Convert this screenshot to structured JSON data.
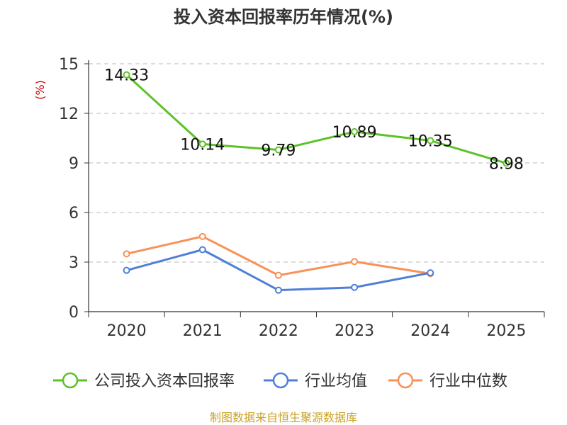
{
  "chart_data": {
    "type": "line",
    "title": "投入资本回报率历年情况(%)",
    "ylabel": "(%)",
    "xlabel": "",
    "categories": [
      "2020",
      "2021",
      "2022",
      "2023",
      "2024",
      "2025"
    ],
    "ylim": [
      0,
      15
    ],
    "yticks": [
      0,
      3,
      6,
      9,
      12,
      15
    ],
    "grid": true,
    "legend_position": "bottom",
    "series": [
      {
        "name": "公司投入资本回报率",
        "color": "#5cc228",
        "values": [
          14.33,
          10.14,
          9.79,
          10.89,
          10.35,
          8.98
        ],
        "labels": [
          "14.33",
          "10.14",
          "9.79",
          "10.89",
          "10.35",
          "8.98"
        ]
      },
      {
        "name": "行业均值",
        "color": "#4f7fd9",
        "values": [
          2.5,
          3.75,
          1.3,
          1.47,
          2.35,
          null
        ]
      },
      {
        "name": "行业中位数",
        "color": "#f79158",
        "values": [
          3.5,
          4.55,
          2.2,
          3.03,
          2.3,
          null
        ]
      }
    ],
    "source": "制图数据来自恒生聚源数据库"
  }
}
